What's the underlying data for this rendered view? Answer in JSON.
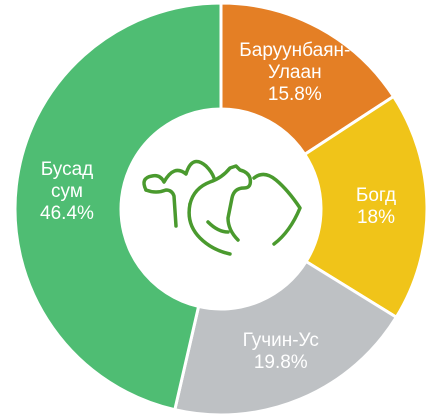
{
  "chart_data": {
    "type": "donut",
    "categories": [
      "Баруунбаян-Улаан",
      "Богд",
      "Гучин-Ус",
      "Бусад сум"
    ],
    "values": [
      15.8,
      18,
      19.8,
      46.4
    ],
    "value_labels": [
      "15.8%",
      "18%",
      "19.8%",
      "46.4%"
    ],
    "colors": [
      "#e47f25",
      "#f0c419",
      "#bec1c4",
      "#4fbd73"
    ]
  }
}
